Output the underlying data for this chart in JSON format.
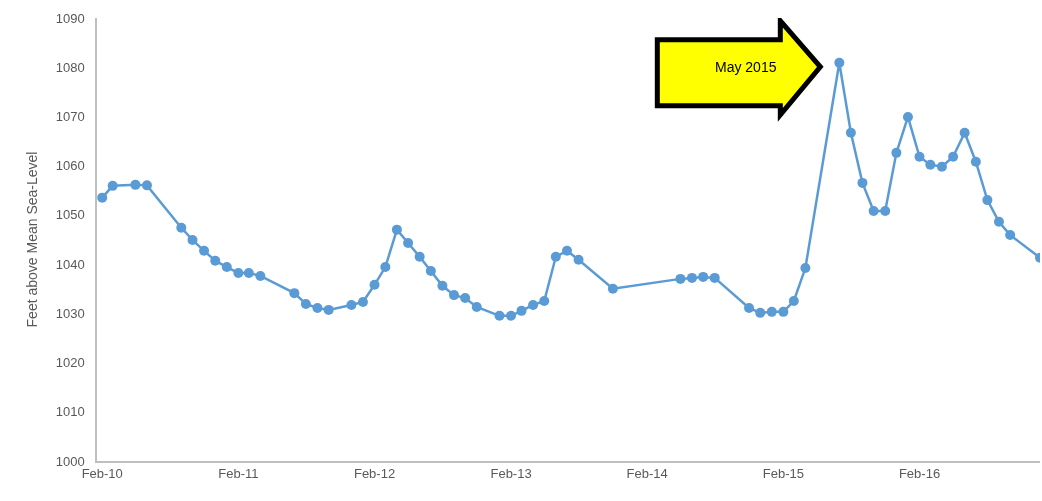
{
  "chart_data": {
    "type": "line",
    "ylabel": "Feet above Mean Sea-Level",
    "x": [
      "2010-02-01",
      "2010-03-01",
      "2010-05-01",
      "2010-06-01",
      "2010-09-01",
      "2010-10-01",
      "2010-11-01",
      "2010-12-01",
      "2011-01-01",
      "2011-02-01",
      "2011-03-01",
      "2011-04-01",
      "2011-07-01",
      "2011-08-01",
      "2011-09-01",
      "2011-10-01",
      "2011-12-01",
      "2012-01-01",
      "2012-02-01",
      "2012-03-01",
      "2012-04-01",
      "2012-05-01",
      "2012-06-01",
      "2012-07-01",
      "2012-08-01",
      "2012-09-01",
      "2012-10-01",
      "2012-11-01",
      "2013-01-01",
      "2013-02-01",
      "2013-03-01",
      "2013-04-01",
      "2013-05-01",
      "2013-06-01",
      "2013-07-01",
      "2013-08-01",
      "2013-11-01",
      "2014-05-01",
      "2014-06-01",
      "2014-07-01",
      "2014-08-01",
      "2014-11-01",
      "2014-12-01",
      "2015-01-01",
      "2015-02-01",
      "2015-03-01",
      "2015-04-01",
      "2015-07-01",
      "2015-08-01",
      "2015-09-01",
      "2015-10-01",
      "2015-11-01",
      "2015-12-01",
      "2016-01-01",
      "2016-02-01",
      "2016-03-01",
      "2016-04-01",
      "2016-05-01",
      "2016-06-01",
      "2016-07-01",
      "2016-08-01",
      "2016-09-01",
      "2016-10-01",
      "2016-12-20"
    ],
    "series": [
      {
        "color": "#5b9bd5",
        "values": [
          1053.5,
          1055.9,
          1056.1,
          1056,
          1047.4,
          1044.9,
          1042.7,
          1040.7,
          1039.4,
          1038.2,
          1038.2,
          1037.6,
          1034.1,
          1031.9,
          1031.1,
          1030.7,
          1031.7,
          1032.3,
          1035.8,
          1039.4,
          1047,
          1044.3,
          1041.5,
          1038.6,
          1035.6,
          1033.7,
          1033.1,
          1031.3,
          1029.5,
          1029.5,
          1030.5,
          1031.7,
          1032.5,
          1041.5,
          1042.7,
          1040.9,
          1035,
          1037,
          1037.2,
          1037.4,
          1037.2,
          1031.1,
          1030.1,
          1030.3,
          1030.3,
          1032.5,
          1039.2,
          1080.9,
          1066.7,
          1056.5,
          1050.8,
          1050.8,
          1062.6,
          1069.9,
          1061.8,
          1060.2,
          1059.8,
          1061.8,
          1066.7,
          1060.8,
          1053,
          1048.6,
          1045.9,
          1041.3
        ]
      }
    ],
    "xlim": [
      "2010-01-18",
      "2016-12-20"
    ],
    "xticks": [
      {
        "value": "2010-02-01",
        "label": "Feb-10"
      },
      {
        "value": "2011-02-01",
        "label": "Feb-11"
      },
      {
        "value": "2012-02-01",
        "label": "Feb-12"
      },
      {
        "value": "2013-02-01",
        "label": "Feb-13"
      },
      {
        "value": "2014-02-01",
        "label": "Feb-14"
      },
      {
        "value": "2015-02-01",
        "label": "Feb-15"
      },
      {
        "value": "2016-02-01",
        "label": "Feb-16"
      }
    ],
    "ylim": [
      1000,
      1090
    ],
    "yticks": [
      1000,
      1010,
      1020,
      1030,
      1040,
      1050,
      1060,
      1070,
      1080,
      1090
    ],
    "legend": false,
    "marker": "circle",
    "line_style": "solid",
    "annotations": [
      "May 2015"
    ]
  }
}
